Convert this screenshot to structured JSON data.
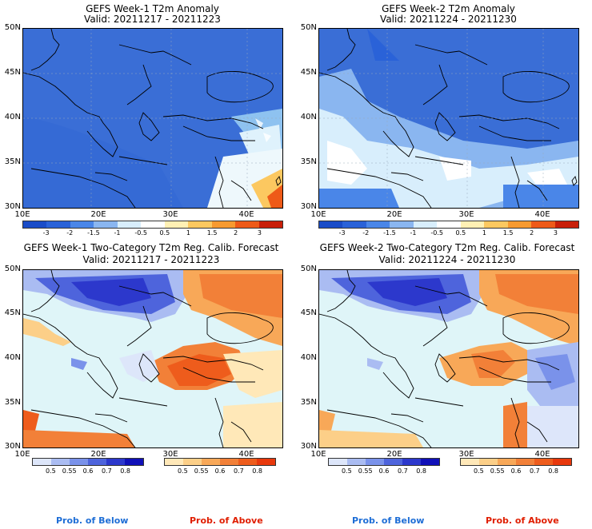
{
  "panels": [
    {
      "title": "GEFS Week-1 T2m Anomaly",
      "valid": "Valid: 20211217 - 20211223"
    },
    {
      "title": "GEFS Week-2 T2m Anomaly",
      "valid": "Valid: 20211224 - 20211230"
    },
    {
      "title": "GEFS Week-1 Two-Category T2m Reg. Calib. Forecast",
      "valid": "Valid: 20211217 - 20211223"
    },
    {
      "title": "GEFS Week-2 Two-Category T2m Reg. Calib. Forecast",
      "valid": "Valid: 20211224 - 20211230"
    }
  ],
  "lat_ticks": [
    "50N",
    "45N",
    "40N",
    "35N",
    "30N"
  ],
  "lon_ticks": [
    "10E",
    "20E",
    "30E",
    "40E"
  ],
  "anomaly_scale": {
    "labels": [
      "-3",
      "-2",
      "-1.5",
      "-1",
      "-0.5",
      "0.5",
      "1",
      "1.5",
      "2",
      "3"
    ],
    "colors": [
      "#1a4cc8",
      "#2a62d8",
      "#4a86e8",
      "#8ab6f0",
      "#d8eefc",
      "#ffffff",
      "#fff0b4",
      "#fcc860",
      "#f79a30",
      "#ee5a18",
      "#c81e08"
    ]
  },
  "prob_below_scale": {
    "labels": [
      "0.5",
      "0.55",
      "0.6",
      "0.7",
      "0.8"
    ],
    "colors": [
      "#dde6fa",
      "#aabcf2",
      "#7a92ea",
      "#4e64dc",
      "#2c38cc",
      "#1010b8"
    ]
  },
  "prob_above_scale": {
    "labels": [
      "0.5",
      "0.55",
      "0.6",
      "0.7",
      "0.8"
    ],
    "colors": [
      "#ffe8b8",
      "#fccf88",
      "#f8a858",
      "#f28038",
      "#ee5c1c",
      "#e8380c"
    ]
  },
  "legend_text": {
    "below": "Prob. of Below",
    "above": "Prob. of Above"
  },
  "colors": {
    "below_label": "#1e6ed6",
    "above_label": "#e01e00",
    "ocean_prob": "#dff5f8",
    "no_signal": "#e8f4f8"
  }
}
